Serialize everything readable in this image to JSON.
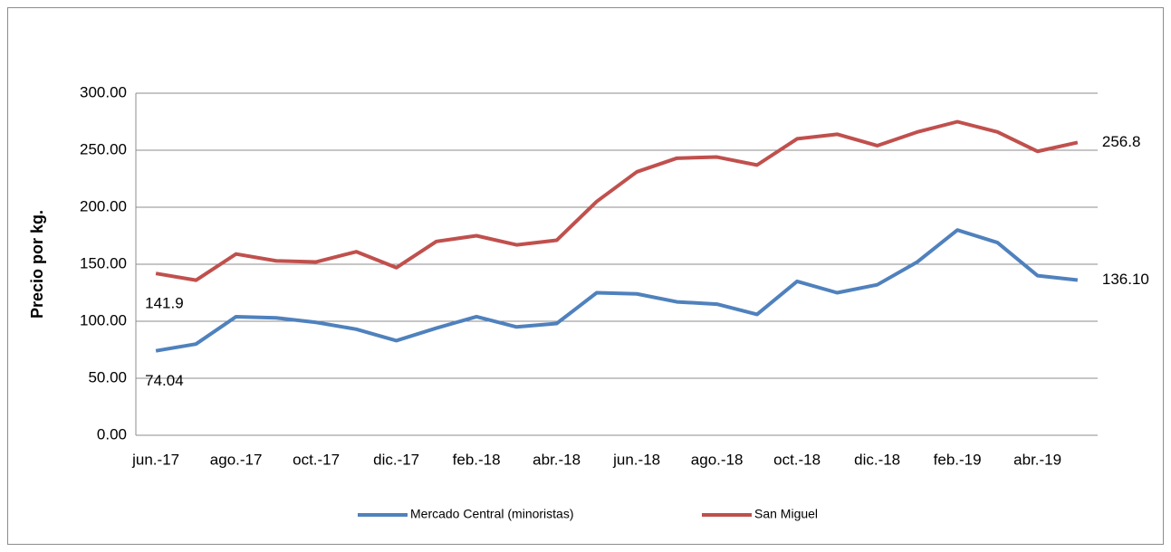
{
  "chart_data": {
    "type": "line",
    "y_label": "Precio por kg.",
    "categories": [
      "jun.-17",
      null,
      "ago.-17",
      null,
      "oct.-17",
      null,
      "dic.-17",
      null,
      "feb.-18",
      null,
      "abr.-18",
      null,
      "jun.-18",
      null,
      "ago.-18",
      null,
      "oct.-18",
      null,
      "dic.-18",
      null,
      "feb.-19",
      null,
      "abr.-19",
      null
    ],
    "series": [
      {
        "name": "Mercado Central (minoristas)",
        "color": "#4f81bd",
        "values": [
          74.04,
          80,
          104,
          103,
          99,
          93,
          83,
          94,
          104,
          95,
          98,
          125,
          124,
          117,
          115,
          106,
          135,
          125,
          132,
          152,
          180,
          169,
          140,
          136.1
        ],
        "value_labels": [
          "74.04",
          null,
          null,
          null,
          null,
          null,
          null,
          null,
          null,
          null,
          null,
          null,
          null,
          null,
          null,
          null,
          null,
          null,
          null,
          null,
          null,
          null,
          null,
          "136.10"
        ]
      },
      {
        "name": "San Miguel",
        "color": "#c0504d",
        "values": [
          141.9,
          136,
          159,
          153,
          152,
          161,
          147,
          170,
          175,
          167,
          171,
          205,
          231,
          243,
          244,
          237,
          260,
          264,
          254,
          266,
          275,
          266,
          249,
          256.8
        ],
        "value_labels": [
          "141.9",
          null,
          null,
          null,
          null,
          null,
          null,
          null,
          null,
          null,
          null,
          null,
          null,
          null,
          null,
          null,
          null,
          null,
          null,
          null,
          null,
          null,
          null,
          "256.8"
        ]
      }
    ],
    "ylim": [
      0,
      300
    ],
    "yticks": [
      {
        "value": 0,
        "label": "0.00"
      },
      {
        "value": 50,
        "label": "50.00"
      },
      {
        "value": 100,
        "label": "100.00"
      },
      {
        "value": 150,
        "label": "150.00"
      },
      {
        "value": 200,
        "label": "200.00"
      },
      {
        "value": 250,
        "label": "250.00"
      },
      {
        "value": 300,
        "label": "300.00"
      }
    ],
    "grid": true,
    "legend": "bottom"
  }
}
